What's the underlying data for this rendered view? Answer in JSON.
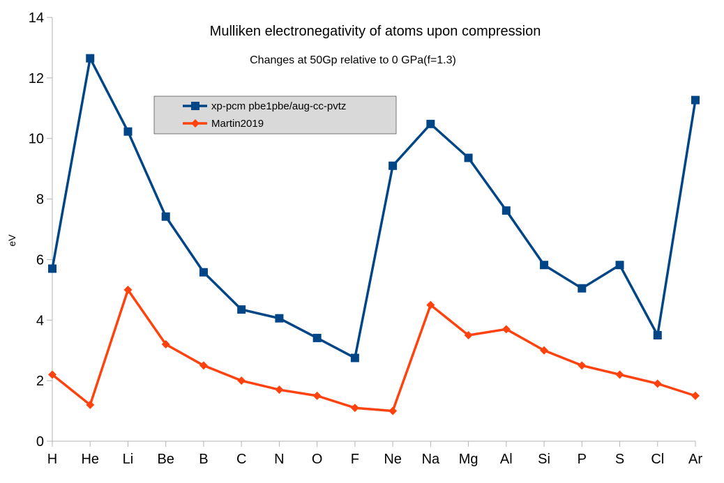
{
  "chart_data": {
    "type": "line",
    "title": "Mulliken electronegativity of atoms upon compression",
    "subtitle": "Changes at 50Gp relative to 0 GPa(f=1.3)",
    "xlabel": "",
    "ylabel": "eV",
    "ylim": [
      0,
      14
    ],
    "yticks": [
      0,
      2,
      4,
      6,
      8,
      10,
      12,
      14
    ],
    "grid": false,
    "legend_position": "top-left",
    "categories": [
      "H",
      "He",
      "Li",
      "Be",
      "B",
      "C",
      "N",
      "O",
      "F",
      "Ne",
      "Na",
      "Mg",
      "Al",
      "Si",
      "P",
      "S",
      "Cl",
      "Ar"
    ],
    "series": [
      {
        "name": "xp-pcm pbe1pbe/aug-cc-pvtz",
        "color": "#004586",
        "marker": "square",
        "values": [
          5.7,
          12.65,
          10.23,
          7.42,
          5.58,
          4.35,
          4.06,
          3.41,
          2.75,
          null,
          10.48,
          9.36,
          7.62,
          5.82,
          5.05,
          5.82,
          3.5,
          11.27
        ]
      },
      {
        "name": "Martin2019",
        "color": "#ff420e",
        "marker": "diamond",
        "values": [
          2.2,
          1.2,
          5.0,
          3.2,
          2.5,
          2.0,
          1.7,
          1.5,
          1.1,
          1.0,
          4.5,
          3.5,
          3.7,
          3.0,
          2.5,
          2.2,
          1.9,
          1.5
        ]
      }
    ],
    "series_gap_note_values": {
      "Ne_blue": 9.1
    }
  }
}
